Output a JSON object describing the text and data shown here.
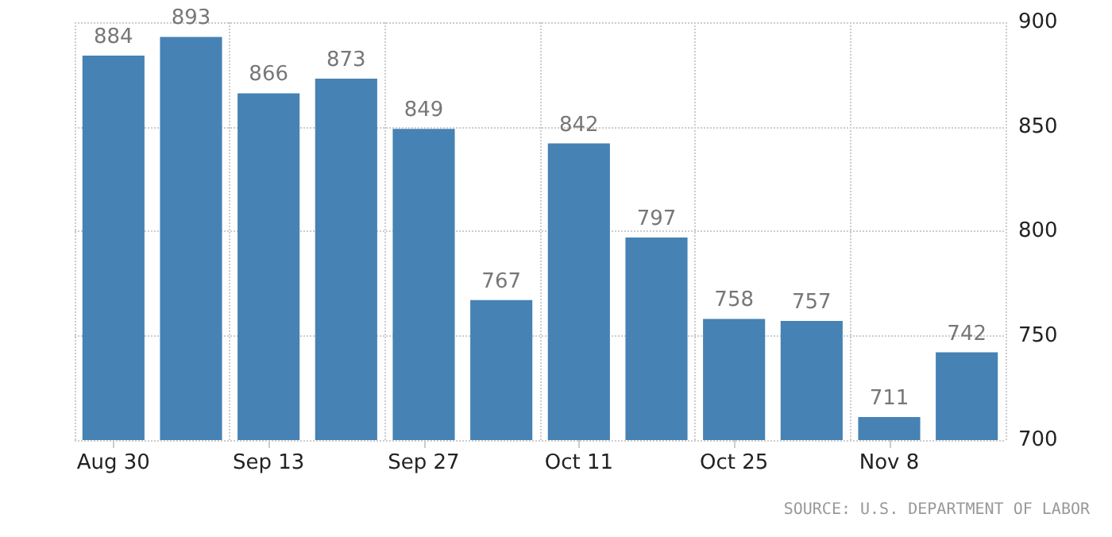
{
  "chart_data": {
    "type": "bar",
    "categories": [
      "Aug 30",
      null,
      "Sep 13",
      null,
      "Sep 27",
      null,
      "Oct 11",
      null,
      "Oct 25",
      null,
      "Nov 8",
      null
    ],
    "values": [
      884,
      893,
      866,
      873,
      849,
      767,
      842,
      797,
      758,
      757,
      711,
      742
    ],
    "color": "#4682b4",
    "ylim": [
      700,
      900
    ],
    "yticks": [
      700,
      750,
      800,
      850,
      900
    ],
    "grid": true,
    "data_labels": true,
    "annotations": [
      "SOURCE: U.S. DEPARTMENT OF LABOR"
    ]
  }
}
